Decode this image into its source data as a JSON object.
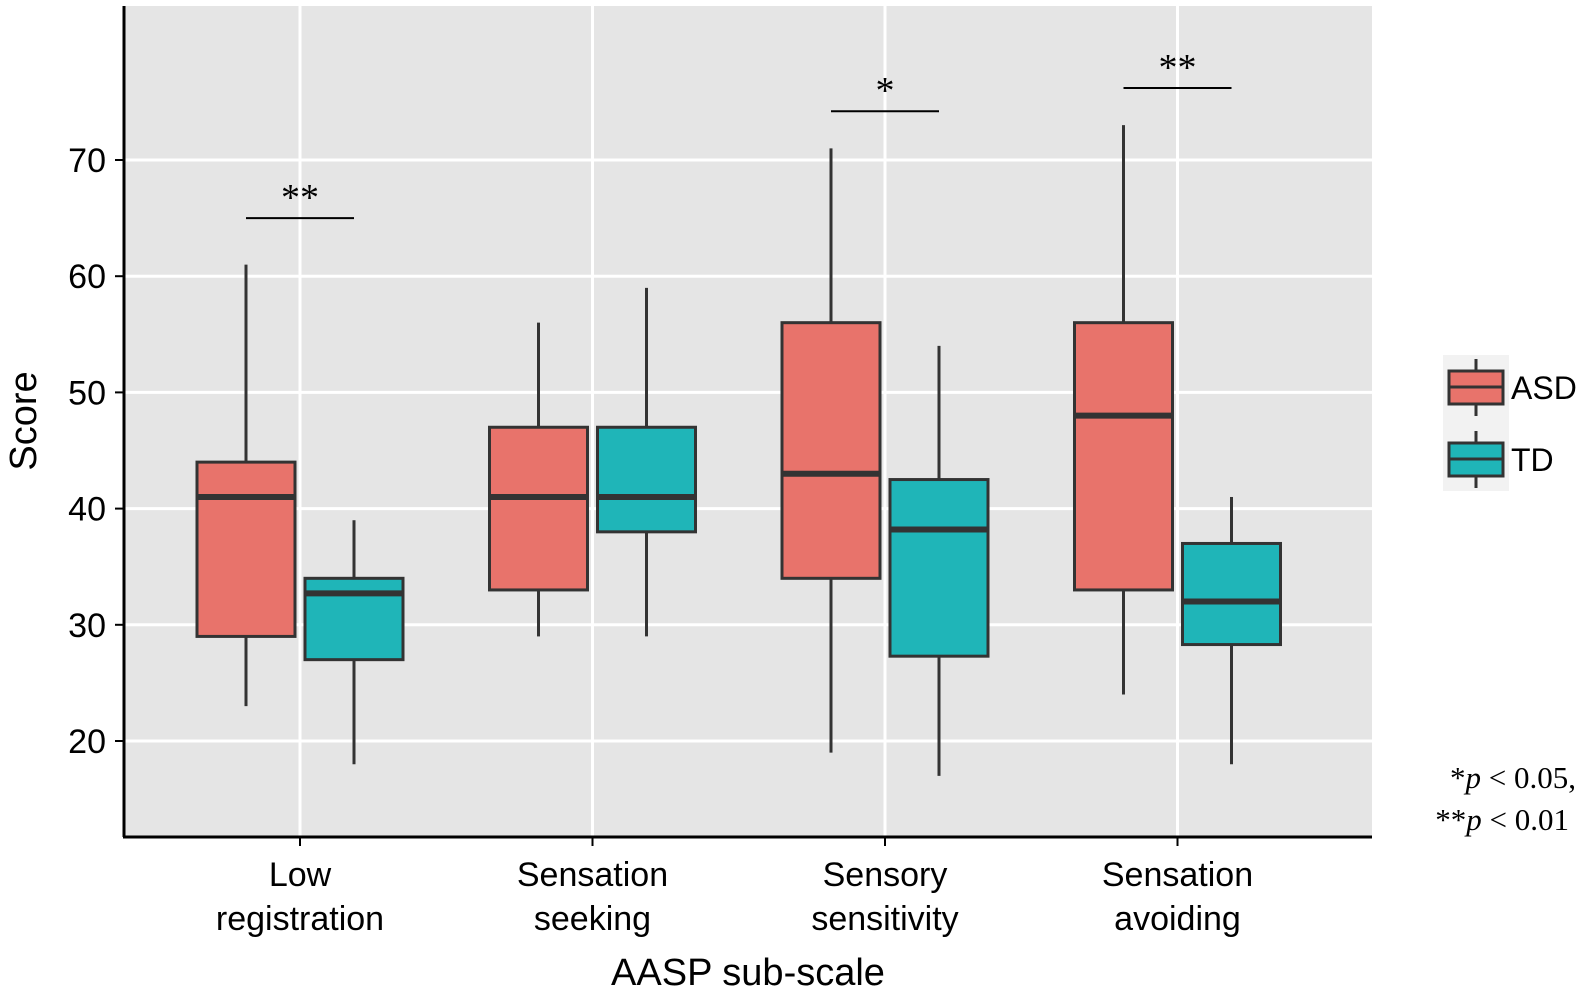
{
  "chart_data": {
    "type": "boxplot",
    "xlabel": "AASP sub-scale",
    "ylabel": "Score",
    "yticks": [
      20,
      30,
      40,
      50,
      60,
      70
    ],
    "ylim": [
      12,
      84
    ],
    "categories": [
      {
        "line1": "Low",
        "line2": "registration"
      },
      {
        "line1": "Sensation",
        "line2": "seeking"
      },
      {
        "line1": "Sensory",
        "line2": "sensitivity"
      },
      {
        "line1": "Sensation",
        "line2": "avoiding"
      }
    ],
    "series": [
      {
        "name": "ASD",
        "color": "#e8736b",
        "boxes": [
          {
            "min": 23,
            "q1": 29,
            "median": 41,
            "q3": 44,
            "max": 61
          },
          {
            "min": 29,
            "q1": 33,
            "median": 41,
            "q3": 47,
            "max": 56
          },
          {
            "min": 19,
            "q1": 34,
            "median": 43,
            "q3": 56,
            "max": 71
          },
          {
            "min": 24,
            "q1": 33,
            "median": 48,
            "q3": 56,
            "max": 73
          }
        ]
      },
      {
        "name": "TD",
        "color": "#1fb5b8",
        "boxes": [
          {
            "min": 18,
            "q1": 27,
            "median": 32.7,
            "q3": 34,
            "max": 39
          },
          {
            "min": 29,
            "q1": 38,
            "median": 41,
            "q3": 47,
            "max": 59
          },
          {
            "min": 17,
            "q1": 27.3,
            "median": 38.2,
            "q3": 42.5,
            "max": 54
          },
          {
            "min": 18,
            "q1": 28.3,
            "median": 32,
            "q3": 37,
            "max": 41
          }
        ]
      }
    ],
    "significance": [
      {
        "category": 0,
        "label": "**",
        "y": 65
      },
      {
        "category": 2,
        "label": "*",
        "y": 74.2
      },
      {
        "category": 3,
        "label": "**",
        "y": 76.2
      }
    ],
    "legend": {
      "items": [
        "ASD",
        "TD"
      ],
      "position": "right"
    },
    "note": {
      "line1_stars": "*",
      "line1_p": "p",
      "line1_rest": " < 0.05,",
      "line2_stars": "**",
      "line2_p": "p",
      "line2_rest": " < 0.01"
    }
  }
}
